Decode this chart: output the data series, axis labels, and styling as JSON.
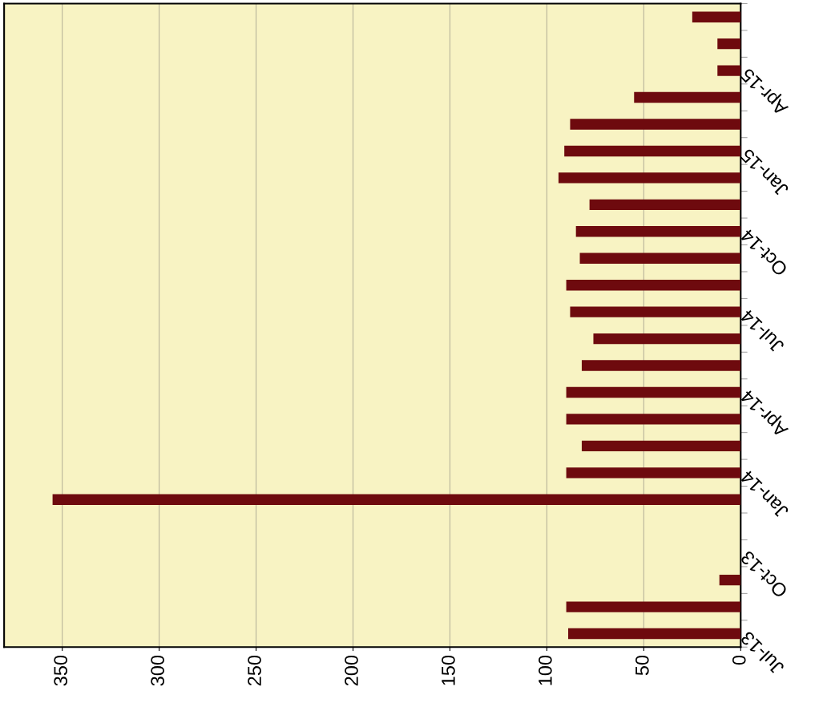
{
  "chart_data": {
    "type": "bar",
    "orientation": "horizontal",
    "categories": [
      null,
      null,
      "Apr-15",
      null,
      null,
      "Jan-15",
      null,
      null,
      "Oct-14",
      null,
      null,
      "Jul-14",
      null,
      null,
      "Apr-14",
      null,
      null,
      "Jan-14",
      null,
      null,
      "Oct-13",
      null,
      null,
      "Jul-13"
    ],
    "values": [
      25,
      12,
      12,
      55,
      88,
      91,
      94,
      78,
      85,
      83,
      90,
      88,
      76,
      82,
      90,
      90,
      82,
      90,
      355,
      null,
      null,
      11,
      90,
      89
    ],
    "color": "#6e0a0e",
    "xlim": [
      380,
      0
    ],
    "xticks": [
      0,
      50,
      100,
      150,
      200,
      250,
      300,
      350
    ],
    "grid": "x"
  }
}
